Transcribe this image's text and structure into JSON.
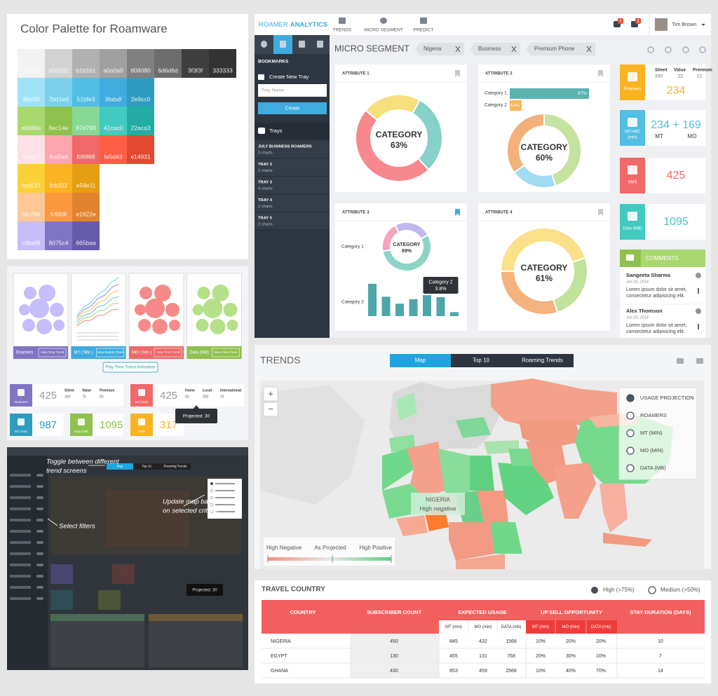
{
  "palette": {
    "title": "Color Palette for Roamware",
    "rows": [
      [
        "f2f2f2",
        "d2d2d2",
        "b1b1b1",
        "a0a0a0",
        "808080",
        "6d6d6d",
        "3f3f3f",
        "333333"
      ],
      [
        "9fe3f9",
        "7bd1ed",
        "51bfe3",
        "3fabdf",
        "2e9cc0"
      ],
      [
        "a9d86e",
        "8ec14e",
        "87d796",
        "41cac0",
        "22aca3"
      ],
      [
        "fde1e7",
        "fca5ad",
        "f06868",
        "fe5d43",
        "e14931"
      ],
      [
        "fad137",
        "fcb322",
        "e59e11"
      ],
      [
        "fdc796",
        "fc983f",
        "e1822e"
      ],
      [
        "c6bef8",
        "8075c4",
        "665baa"
      ]
    ]
  },
  "showcase": {
    "thumbnails": [
      {
        "label": "Roamers",
        "button": "View Time Trend",
        "color": "#8075c4",
        "bubble": "#c6bef8"
      },
      {
        "label": "MT ( Min )",
        "button": "View Bubble Chart",
        "color": "#3fabdf",
        "bubble": "#9fe3f9"
      },
      {
        "label": "MO ( Min )",
        "button": "View Time Trend",
        "color": "#f06868",
        "bubble": "#f68a8a"
      },
      {
        "label": "Data (MB)",
        "button": "View Time Trend",
        "color": "#8ec14e",
        "bubble": "#b5e08a"
      }
    ],
    "play_button": "Play Time Trend Animation",
    "cards": [
      {
        "label": "Roamers",
        "color": "#8075c4",
        "value": "425",
        "stats": [
          {
            "name": "Silent",
            "value": "300"
          },
          {
            "name": "Value",
            "value": "75"
          },
          {
            "name": "Premium",
            "value": "50"
          }
        ]
      },
      {
        "label": "MO (min)",
        "color": "#f06868",
        "value": "425",
        "stats": [
          {
            "name": "Home",
            "value": "50"
          },
          {
            "name": "Local",
            "value": "350"
          },
          {
            "name": "International",
            "value": "25"
          }
        ]
      },
      {
        "label": "MT (min)",
        "color": "#2e9cc0",
        "value": "987"
      },
      {
        "label": "Data (MB)",
        "color": "#8ec14e",
        "value": "1095"
      },
      {
        "label": "SMS",
        "color": "#fcb322",
        "value": "317"
      }
    ],
    "tooltip": "Projected: 30"
  },
  "walkthrough": {
    "tabs": [
      "Map",
      "Top 10",
      "Roaming Trends"
    ],
    "annotations": [
      [
        "Toggle between different",
        "trend screens"
      ],
      [
        "Update map based",
        "on selected criteria"
      ],
      [
        "Select filters"
      ]
    ],
    "tooltip": "Projected: 30"
  },
  "app": {
    "brand": {
      "light": "ROAMER",
      "bold": "ANALYTICS"
    },
    "nav": [
      "TRENDS",
      "MICRO SEGMENT",
      "PREDICT"
    ],
    "badges": [
      "5",
      "3"
    ],
    "user": "Tim Brown",
    "sidebar": {
      "heading": "BOOKMARKS",
      "create_label": "Create New Tray",
      "input_placeholder": "Tray Name",
      "create_button": "Create",
      "trays_heading": "Trays",
      "trays": [
        {
          "name": "JULY BUSINESS ROAMERS",
          "count": "3 charts"
        },
        {
          "name": "TRAY 2",
          "count": "2 charts"
        },
        {
          "name": "TRAY 3",
          "count": "4 charts"
        },
        {
          "name": "TRAY 4",
          "count": "2 charts"
        },
        {
          "name": "TRAY 5",
          "count": "2 charts"
        }
      ]
    },
    "segment": {
      "title": "MICRO SEGMENT",
      "filters": [
        "Nigeria",
        "Business",
        "Premium Phone"
      ]
    },
    "attributes": [
      {
        "title": "ATTRIBUTE 1",
        "bookmarked": false,
        "center_label": "CATEGORY",
        "center_value": "63%",
        "segments": [
          {
            "value": 22,
            "color": "#f6df7e"
          },
          {
            "value": 30,
            "color": "#86d2c8"
          },
          {
            "value": 48,
            "color": "#f6888e"
          }
        ]
      },
      {
        "title": "ATTRIBUTE 2",
        "bookmarked": false,
        "center_label": "CATEGORY",
        "center_value": "60%",
        "bars": [
          {
            "label": "Category 1",
            "value": 87,
            "value_label": "87%",
            "color": "#5bb2b0"
          },
          {
            "label": "Category 2",
            "value": 13,
            "value_label": "13%",
            "color": "#f8b65a"
          }
        ],
        "segments": [
          {
            "value": 45,
            "color": "#c5e3a0"
          },
          {
            "value": 20,
            "color": "#a1dcf2"
          },
          {
            "value": 35,
            "color": "#f4b07a"
          }
        ]
      },
      {
        "title": "ATTRIBUTE 3",
        "bookmarked": true,
        "center_label": "CATEGORY",
        "center_value": "69%",
        "segments": [
          {
            "value": 25,
            "color": "#c2b8f0"
          },
          {
            "value": 55,
            "color": "#8dd4c6"
          },
          {
            "value": 20,
            "color": "#f5a3c0"
          }
        ],
        "donut_label": "Category 1",
        "bar_label": "Category 2",
        "columns": {
          "color": "#4ea6aa",
          "values": [
            6.5,
            3.9,
            2.5,
            3.4,
            4.2,
            3.8,
            0.8
          ]
        },
        "tooltip": {
          "title": "Category 2",
          "value": 3.8,
          "value_label": "3.8%"
        }
      },
      {
        "title": "ATTRIBUTE 4",
        "bookmarked": false,
        "center_label": "CATEGORY",
        "center_value": "61%",
        "segments": [
          {
            "value": 45,
            "color": "#fbe08a"
          },
          {
            "value": 25,
            "color": "#bfe39c"
          },
          {
            "value": 30,
            "color": "#f5b27d"
          }
        ]
      }
    ],
    "stats": [
      {
        "label": [
          "Roamers"
        ],
        "color": "#fcb322",
        "value": "234",
        "stats": [
          {
            "name": "Silent",
            "value": "200"
          },
          {
            "name": "Value",
            "value": "22"
          },
          {
            "name": "Premium",
            "value": "12"
          }
        ]
      },
      {
        "label": [
          "MT+MO",
          "(min)"
        ],
        "color": "#51bfe3",
        "value": "234 + 169",
        "sub": [
          "MT",
          "MO"
        ]
      },
      {
        "label": [
          "SMS"
        ],
        "color": "#f06868",
        "value": "425"
      },
      {
        "label": [
          "Data (MB)"
        ],
        "color": "#41cac0",
        "value": "1095"
      }
    ],
    "comments": {
      "title": "COMMENTS",
      "items": [
        {
          "name": "Sangeeta Sharma",
          "date": "Jun 25, 2014",
          "lines": [
            "Lorem ipsum dolor sit amet,",
            "consectetur adipisicing elit."
          ]
        },
        {
          "name": "Alex Thomson",
          "date": "Jun 25, 2014",
          "lines": [
            "Lorem ipsum dolor sit amet,",
            "consectetur adipisicing elit."
          ]
        }
      ]
    }
  },
  "trends": {
    "title": "TRENDS",
    "tabs": [
      {
        "label": "Map",
        "active": true
      },
      {
        "label": "Top 10",
        "active": false
      },
      {
        "label": "Roaming Trends",
        "active": false
      }
    ],
    "zoom": [
      "+",
      "−"
    ],
    "legend": [
      {
        "label": "USAGE PROJECTION",
        "selected": true
      },
      {
        "label": "ROAMERS",
        "selected": false
      },
      {
        "label": "MT (MIN)",
        "selected": false
      },
      {
        "label": "MO (MIN)",
        "selected": false
      },
      {
        "label": "DATA  (MB)",
        "selected": false
      }
    ],
    "highlight": {
      "country": "NIGERIA",
      "status": "High negative"
    },
    "scale": [
      "High Negative",
      "As Projected",
      "High Positive"
    ]
  },
  "travel_country": {
    "title": "TRAVEL COUNTRY",
    "legend": [
      "High (>75%)",
      "Medium (>50%)"
    ],
    "columns": [
      "COUNTRY",
      "SUBSCRIBER  COUNT",
      "EXPECTED USAGE",
      "UP SELL OPPORTUNITY",
      "STAY DURATION (DAYS)"
    ],
    "subcolumns": {
      "expected": [
        "MT (min)",
        "MO (min)",
        "DATA (mb)"
      ],
      "upsell": [
        "MT (min)",
        "MO (min)",
        "DATA (mb)"
      ]
    },
    "rows": [
      [
        "NIGERIA",
        "450",
        "845",
        "432",
        "1568",
        "10%",
        "20%",
        "20%",
        "10"
      ],
      [
        "EGYPT",
        "130",
        "455",
        "131",
        "768",
        "20%",
        "30%",
        "10%",
        "7"
      ],
      [
        "GHANA",
        "430",
        "653",
        "459",
        "2568",
        "10%",
        "40%",
        "70%",
        "14"
      ]
    ]
  }
}
